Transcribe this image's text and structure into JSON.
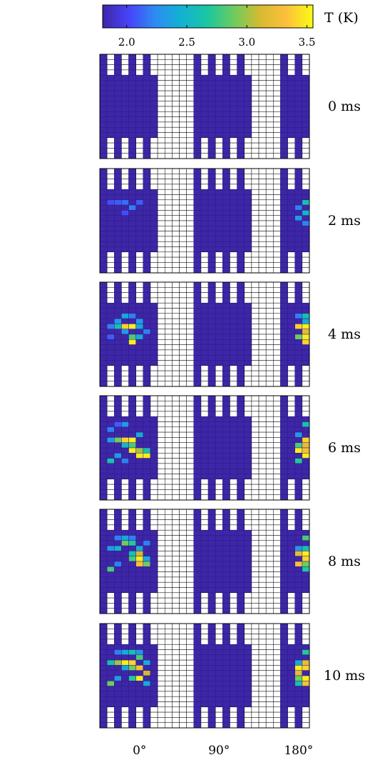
{
  "colorbar": {
    "label": "T (K)",
    "min": 1.8,
    "max": 3.55,
    "ticks": [
      2.0,
      2.5,
      3.0,
      3.5
    ],
    "tick_labels": [
      "2.0",
      "2.5",
      "3.0",
      "3.5"
    ],
    "colormap": [
      "#3e26a8",
      "#4743f8",
      "#2d8cf3",
      "#12b2d3",
      "#1ac7a0",
      "#6dcc5e",
      "#d8ba31",
      "#fdc03a",
      "#f9fb15"
    ]
  },
  "chart_data": {
    "type": "heatmap",
    "panels": [
      {
        "label": "0 ms",
        "t_ms": 0
      },
      {
        "label": "2 ms",
        "t_ms": 2
      },
      {
        "label": "4 ms",
        "t_ms": 4
      },
      {
        "label": "6 ms",
        "t_ms": 6
      },
      {
        "label": "8 ms",
        "t_ms": 8
      },
      {
        "label": "10 ms",
        "t_ms": 10
      }
    ],
    "grid": {
      "columns": 29,
      "rows": 20
    },
    "x_ticks": [
      {
        "label": "0°",
        "col": 5
      },
      {
        "label": "90°",
        "col": 16
      },
      {
        "label": "180°",
        "col": 27
      }
    ],
    "base_temperature": 1.85,
    "structure": {
      "empty_col_ranges": [
        [
          8,
          12
        ],
        [
          21,
          24
        ]
      ],
      "comb_rows_top": [
        0,
        1,
        2,
        3
      ],
      "comb_rows_bottom": [
        16,
        17,
        18,
        19
      ],
      "comb_top_filled_cols": [
        0,
        2,
        4,
        6,
        13,
        15,
        17,
        19,
        25,
        27
      ],
      "comb_bottom_filled_cols": [
        0,
        2,
        4,
        6,
        13,
        15,
        17,
        19,
        25,
        27
      ],
      "top_edge_gap_cols": [
        1,
        3,
        5,
        7,
        14,
        16,
        18,
        20,
        26,
        28
      ],
      "bottom_edge_gap_cols": [
        1,
        3,
        5,
        7,
        14,
        16,
        18,
        20,
        26,
        28
      ]
    },
    "hot_cells": [
      [],
      [
        [
          1,
          6,
          2.05
        ],
        [
          2,
          6,
          2.1
        ],
        [
          3,
          6,
          2.15
        ],
        [
          4,
          7,
          2.2
        ],
        [
          5,
          6,
          2.1
        ],
        [
          3,
          8,
          2.05
        ],
        [
          28,
          6,
          2.6
        ],
        [
          27,
          7,
          2.2
        ],
        [
          28,
          8,
          2.5
        ],
        [
          27,
          9,
          2.3
        ],
        [
          28,
          10,
          2.2
        ]
      ],
      [
        [
          1,
          8,
          2.2
        ],
        [
          2,
          7,
          2.3
        ],
        [
          3,
          6,
          2.4
        ],
        [
          4,
          6,
          2.2
        ],
        [
          5,
          7,
          2.3
        ],
        [
          2,
          8,
          2.6
        ],
        [
          3,
          8,
          3.4
        ],
        [
          4,
          8,
          3.5
        ],
        [
          5,
          8,
          2.4
        ],
        [
          3,
          9,
          2.3
        ],
        [
          4,
          10,
          2.8
        ],
        [
          5,
          10,
          2.4
        ],
        [
          4,
          11,
          3.5
        ],
        [
          6,
          9,
          2.2
        ],
        [
          1,
          10,
          2.1
        ],
        [
          27,
          6,
          2.2
        ],
        [
          28,
          6,
          2.6
        ],
        [
          28,
          7,
          2.4
        ],
        [
          27,
          8,
          3.4
        ],
        [
          28,
          8,
          3.5
        ],
        [
          28,
          9,
          3.2
        ],
        [
          27,
          10,
          2.9
        ],
        [
          28,
          10,
          3.5
        ],
        [
          28,
          11,
          3.4
        ]
      ],
      [
        [
          1,
          6,
          2.2
        ],
        [
          2,
          5,
          2.1
        ],
        [
          3,
          5,
          2.3
        ],
        [
          1,
          8,
          2.3
        ],
        [
          2,
          8,
          2.9
        ],
        [
          3,
          8,
          3.4
        ],
        [
          4,
          8,
          3.5
        ],
        [
          5,
          7,
          2.4
        ],
        [
          3,
          9,
          2.5
        ],
        [
          4,
          9,
          2.8
        ],
        [
          4,
          10,
          3.5
        ],
        [
          5,
          10,
          3.0
        ],
        [
          6,
          10,
          2.6
        ],
        [
          5,
          11,
          3.5
        ],
        [
          6,
          11,
          3.5
        ],
        [
          2,
          11,
          2.3
        ],
        [
          1,
          12,
          2.6
        ],
        [
          3,
          12,
          2.2
        ],
        [
          28,
          5,
          2.6
        ],
        [
          27,
          7,
          2.3
        ],
        [
          28,
          8,
          3.4
        ],
        [
          27,
          9,
          2.8
        ],
        [
          28,
          9,
          3.2
        ],
        [
          27,
          10,
          3.5
        ],
        [
          28,
          10,
          3.3
        ],
        [
          28,
          11,
          3.5
        ],
        [
          27,
          12,
          2.7
        ]
      ],
      [
        [
          2,
          5,
          2.2
        ],
        [
          3,
          5,
          2.4
        ],
        [
          4,
          5,
          2.2
        ],
        [
          1,
          7,
          2.3
        ],
        [
          2,
          7,
          2.5
        ],
        [
          3,
          6,
          2.9
        ],
        [
          4,
          6,
          2.7
        ],
        [
          5,
          7,
          2.4
        ],
        [
          6,
          6,
          2.2
        ],
        [
          4,
          8,
          2.6
        ],
        [
          5,
          8,
          3.1
        ],
        [
          4,
          9,
          2.8
        ],
        [
          5,
          9,
          3.5
        ],
        [
          6,
          9,
          2.4
        ],
        [
          5,
          10,
          3.3
        ],
        [
          6,
          10,
          2.9
        ],
        [
          2,
          10,
          2.2
        ],
        [
          1,
          11,
          2.8
        ],
        [
          28,
          5,
          2.8
        ],
        [
          27,
          7,
          2.3
        ],
        [
          28,
          7,
          2.6
        ],
        [
          27,
          8,
          3.2
        ],
        [
          28,
          8,
          3.5
        ],
        [
          28,
          9,
          3.4
        ],
        [
          27,
          10,
          3.3
        ],
        [
          28,
          10,
          2.9
        ],
        [
          28,
          11,
          2.7
        ]
      ],
      [
        [
          2,
          5,
          2.2
        ],
        [
          3,
          5,
          2.4
        ],
        [
          4,
          5,
          2.6
        ],
        [
          5,
          5,
          2.3
        ],
        [
          1,
          7,
          2.6
        ],
        [
          2,
          7,
          3.0
        ],
        [
          3,
          7,
          3.5
        ],
        [
          4,
          7,
          3.4
        ],
        [
          5,
          6,
          2.8
        ],
        [
          6,
          7,
          2.4
        ],
        [
          3,
          8,
          2.4
        ],
        [
          4,
          8,
          2.9
        ],
        [
          5,
          8,
          3.3
        ],
        [
          6,
          9,
          3.1
        ],
        [
          5,
          10,
          3.5
        ],
        [
          4,
          10,
          2.7
        ],
        [
          2,
          10,
          2.3
        ],
        [
          1,
          11,
          2.9
        ],
        [
          6,
          11,
          2.4
        ],
        [
          28,
          5,
          2.7
        ],
        [
          27,
          7,
          2.4
        ],
        [
          28,
          7,
          3.2
        ],
        [
          27,
          8,
          3.5
        ],
        [
          28,
          8,
          3.4
        ],
        [
          27,
          9,
          3.2
        ],
        [
          28,
          10,
          3.5
        ],
        [
          27,
          10,
          2.9
        ],
        [
          28,
          11,
          3.3
        ],
        [
          27,
          11,
          2.6
        ]
      ]
    ]
  }
}
